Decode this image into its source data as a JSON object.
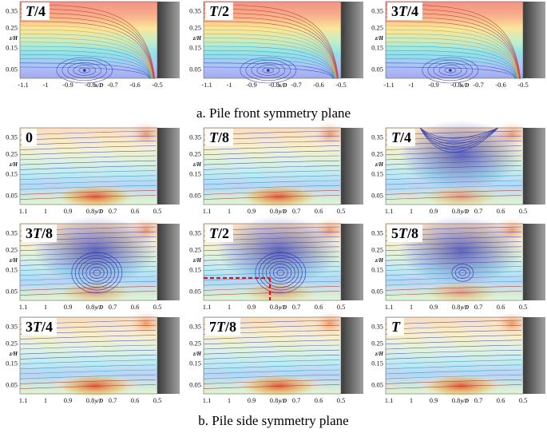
{
  "figure": {
    "captions": {
      "front": "a. Pile front symmetry plane",
      "side": "b. Pile side symmetry plane"
    },
    "front_panels": [
      {
        "label_prefix": "",
        "label_T": "T",
        "label_suffix": "/4"
      },
      {
        "label_prefix": "",
        "label_T": "T",
        "label_suffix": "/2"
      },
      {
        "label_prefix": "3",
        "label_T": "T",
        "label_suffix": "/4"
      }
    ],
    "side_panels": [
      {
        "label_prefix": "0",
        "label_T": "",
        "label_suffix": "",
        "vortex": "none"
      },
      {
        "label_prefix": "",
        "label_T": "T",
        "label_suffix": "/8",
        "vortex": "none"
      },
      {
        "label_prefix": "",
        "label_T": "T",
        "label_suffix": "/4",
        "vortex": "upper"
      },
      {
        "label_prefix": "3",
        "label_T": "T",
        "label_suffix": "/8",
        "vortex": "big"
      },
      {
        "label_prefix": "",
        "label_T": "T",
        "label_suffix": "/2",
        "vortex": "big"
      },
      {
        "label_prefix": "5",
        "label_T": "T",
        "label_suffix": "/8",
        "vortex": "small"
      },
      {
        "label_prefix": "3",
        "label_T": "T",
        "label_suffix": "/4",
        "vortex": "none"
      },
      {
        "label_prefix": "7",
        "label_T": "T",
        "label_suffix": "/8",
        "vortex": "none"
      },
      {
        "label_prefix": "",
        "label_T": "T",
        "label_suffix": "",
        "vortex": "none"
      }
    ],
    "front_axes": {
      "ylabel": "z/H",
      "xlabel": "x/D",
      "yticks": [
        "0.35",
        "0.25",
        "0.15",
        "0.05"
      ],
      "xticks": [
        "-1.1",
        "-1",
        "-0.9",
        "-0.8",
        "-0.7",
        "-0.6",
        "-0.5"
      ]
    },
    "side_axes": {
      "ylabel": "z/H",
      "xlabel": "y/D",
      "yticks": [
        "0.35",
        "0.25",
        "0.15",
        "0.05"
      ],
      "xticks": [
        "1.1",
        "1",
        "0.9",
        "0.8",
        "0.7",
        "0.6",
        "0.5"
      ]
    },
    "colors": {
      "pile": "#6b6b6b",
      "marker": "#d8141c",
      "low": "#2a2aa8",
      "mid": "#3cc8d8",
      "high": "#e83a1e"
    }
  }
}
